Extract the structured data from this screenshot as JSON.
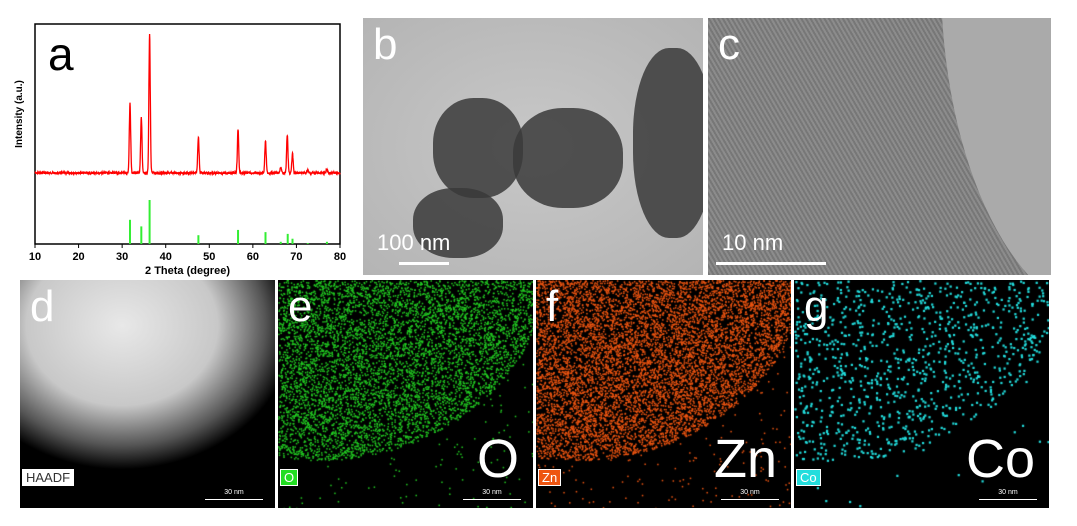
{
  "panels": {
    "a": "a",
    "b": "b",
    "c": "c",
    "d": "d",
    "e": "e",
    "f": "f",
    "g": "g"
  },
  "scalebars": {
    "b": "100 nm",
    "c": "10 nm",
    "eds": "30 nm"
  },
  "tags": {
    "d": "HAADF",
    "e": "O",
    "f": "Zn",
    "g": "Co"
  },
  "elements": {
    "e": "O",
    "f": "Zn",
    "g": "Co"
  },
  "colors": {
    "xrd": "#ff0000",
    "reference": "#33ee33",
    "O": "#22cc22",
    "Zn": "#ee5511",
    "Co": "#22dddd"
  },
  "chart_data": {
    "type": "line",
    "xlabel": "2 Theta (degree)",
    "ylabel": "Intensity (a.u.)",
    "xlim": [
      10,
      80
    ],
    "xticks": [
      10,
      20,
      30,
      40,
      50,
      60,
      70,
      80
    ],
    "series": [
      {
        "kind": "pattern",
        "peaks": [
          [
            31.8,
            0.5
          ],
          [
            34.4,
            0.4
          ],
          [
            36.3,
            1.0
          ],
          [
            47.5,
            0.26
          ],
          [
            56.6,
            0.31
          ],
          [
            62.9,
            0.23
          ],
          [
            66.4,
            0.04
          ],
          [
            67.9,
            0.27
          ],
          [
            69.1,
            0.14
          ],
          [
            72.6,
            0.02
          ],
          [
            77.0,
            0.03
          ]
        ]
      },
      {
        "kind": "reference-sticks",
        "peaks": [
          [
            31.8,
            0.55
          ],
          [
            34.4,
            0.4
          ],
          [
            36.3,
            1.0
          ],
          [
            47.5,
            0.2
          ],
          [
            56.6,
            0.32
          ],
          [
            62.9,
            0.27
          ],
          [
            66.4,
            0.05
          ],
          [
            68.0,
            0.23
          ],
          [
            69.1,
            0.12
          ],
          [
            72.6,
            0.02
          ],
          [
            77.0,
            0.05
          ]
        ]
      }
    ]
  }
}
